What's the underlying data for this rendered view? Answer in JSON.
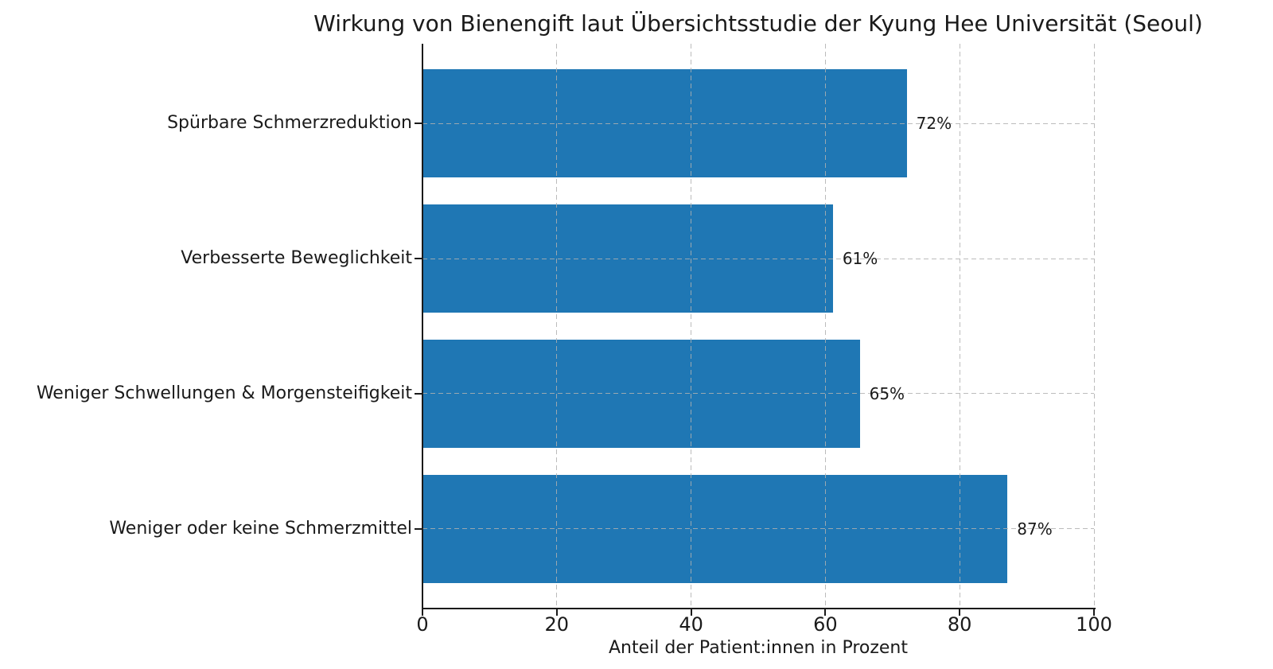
{
  "chart_data": {
    "type": "bar",
    "orientation": "horizontal",
    "title": "Wirkung von Bienengift laut Übersichtsstudie der Kyung Hee Universität (Seoul)",
    "categories": [
      "Spürbare Schmerzreduktion",
      "Verbesserte Beweglichkeit",
      "Weniger Schwellungen & Morgensteifigkeit",
      "Weniger oder keine Schmerzmittel"
    ],
    "values": [
      72,
      61,
      65,
      87
    ],
    "value_labels": [
      "72%",
      "61%",
      "65%",
      "87%"
    ],
    "xlabel": "Anteil der Patient:innen in Prozent",
    "ylabel": "",
    "xlim": [
      0,
      100
    ],
    "xticks": [
      0,
      20,
      40,
      60,
      80,
      100
    ],
    "grid": "both-dashed-above-bars",
    "legend": "none",
    "colors": {
      "bar": "#1f77b4",
      "grid": "#b0b0b0",
      "text": "#1a1a1a",
      "spine": "#1a1a1a",
      "background": "#ffffff"
    }
  }
}
